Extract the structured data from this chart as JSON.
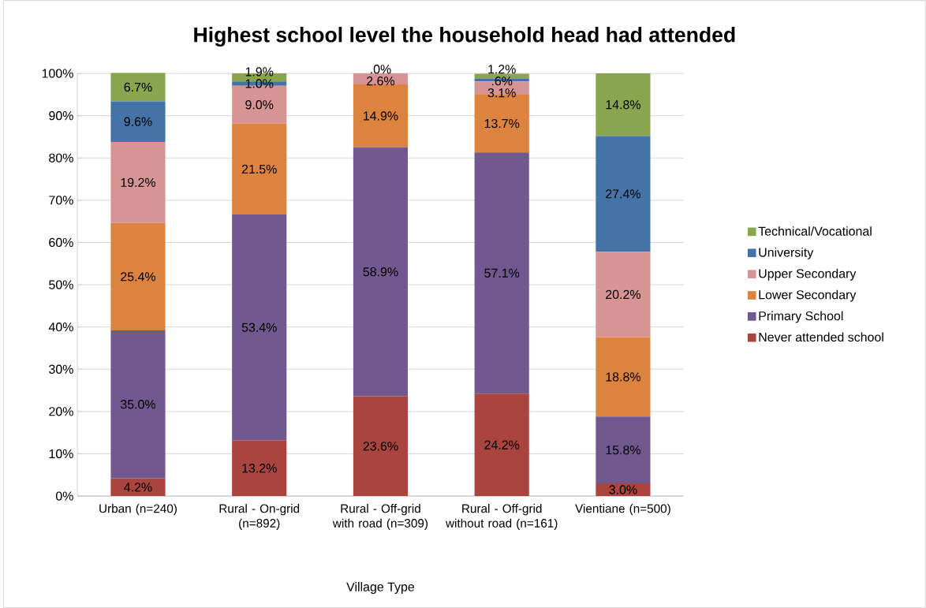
{
  "chart_data": {
    "type": "bar",
    "stacked": true,
    "title": "Highest school level the household head had attended",
    "xlabel": "Village Type",
    "categories": [
      "Urban (n=240)",
      "Rural - On-grid (n=892)",
      "Rural - Off-grid with road (n=309)",
      "Rural - Off-grid without road (n=161)",
      "Vientiane (n=500)"
    ],
    "series": [
      {
        "name": "Never attended school",
        "color": "#a9443f",
        "values": [
          4.2,
          13.2,
          23.6,
          24.2,
          3.0
        ],
        "value_labels": [
          "4.2%",
          "13.2%",
          "23.6%",
          "24.2%",
          "3.0%"
        ]
      },
      {
        "name": "Primary School",
        "color": "#71588f",
        "values": [
          35.0,
          53.4,
          58.9,
          57.1,
          15.8
        ],
        "value_labels": [
          "35.0%",
          "53.4%",
          "58.9%",
          "57.1%",
          "15.8%"
        ]
      },
      {
        "name": "Lower Secondary",
        "color": "#dd8340",
        "values": [
          25.4,
          21.5,
          14.9,
          13.7,
          18.8
        ],
        "value_labels": [
          "25.4%",
          "21.5%",
          "14.9%",
          "13.7%",
          "18.8%"
        ]
      },
      {
        "name": "Upper Secondary",
        "color": "#d79494",
        "values": [
          19.2,
          9.0,
          2.6,
          3.1,
          20.2
        ],
        "value_labels": [
          "19.2%",
          "9.0%",
          "2.6%",
          "3.1%",
          "20.2%"
        ]
      },
      {
        "name": "University",
        "color": "#4573a7",
        "values": [
          9.6,
          1.0,
          0.0,
          0.6,
          27.4
        ],
        "value_labels": [
          "9.6%",
          "1.0%",
          ".0%",
          ".6%",
          "27.4%"
        ]
      },
      {
        "name": "Technical/Vocational",
        "color": "#89a54e",
        "values": [
          6.7,
          1.9,
          0.0,
          1.2,
          14.8
        ],
        "value_labels": [
          "6.7%",
          "1.9%",
          null,
          "1.2%",
          "14.8%"
        ]
      }
    ],
    "ylim": [
      0,
      100
    ],
    "yticks": [
      {
        "value": 0,
        "label": "0%"
      },
      {
        "value": 10,
        "label": "10%"
      },
      {
        "value": 20,
        "label": "20%"
      },
      {
        "value": 30,
        "label": "30%"
      },
      {
        "value": 40,
        "label": "40%"
      },
      {
        "value": 50,
        "label": "50%"
      },
      {
        "value": 60,
        "label": "60%"
      },
      {
        "value": 70,
        "label": "70%"
      },
      {
        "value": 80,
        "label": "80%"
      },
      {
        "value": 90,
        "label": "90%"
      },
      {
        "value": 100,
        "label": "100%"
      }
    ],
    "grid": "y",
    "legend": "right"
  }
}
